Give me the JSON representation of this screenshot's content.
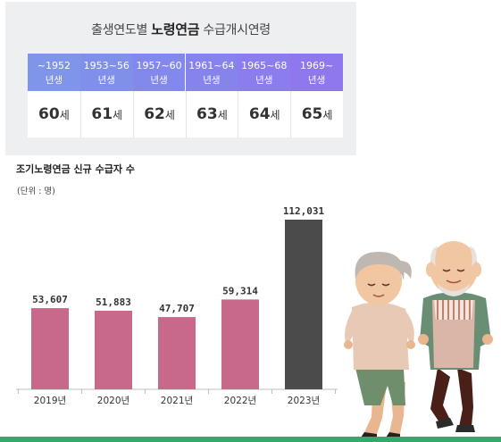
{
  "panel": {
    "title_prefix": "출생연도별 ",
    "title_bold": "노령연금",
    "title_suffix": " 수급개시연령",
    "columns": [
      {
        "range": "~1952",
        "unit": "년생",
        "age": "60",
        "age_suffix": "세",
        "color": "#7f95ea"
      },
      {
        "range": "1953~56",
        "unit": "년생",
        "age": "61",
        "age_suffix": "세",
        "color": "#8090ea"
      },
      {
        "range": "1957~60",
        "unit": "년생",
        "age": "62",
        "age_suffix": "세",
        "color": "#8389ec"
      },
      {
        "range": "1961~64",
        "unit": "년생",
        "age": "63",
        "age_suffix": "세",
        "color": "#8783ed"
      },
      {
        "range": "1965~68",
        "unit": "년생",
        "age": "64",
        "age_suffix": "세",
        "color": "#8b7dee"
      },
      {
        "range": "1969~",
        "unit": "년생",
        "age": "65",
        "age_suffix": "세",
        "color": "#8f77ee"
      }
    ]
  },
  "chart_data": {
    "type": "bar",
    "title": "조기노령연금 신규 수급자 수",
    "unit_note": "(단위 : 명)",
    "categories": [
      "2019년",
      "2020년",
      "2021년",
      "2022년",
      "2023년"
    ],
    "values": [
      53607,
      51883,
      47707,
      59314,
      112031
    ],
    "value_labels": [
      "53,607",
      "51,883",
      "47,707",
      "59,314",
      "112,031"
    ],
    "ylim": [
      0,
      112031
    ],
    "grid": false,
    "colors": [
      "#c8688b",
      "#c8688b",
      "#c8688b",
      "#c8688b",
      "#4b4b4b"
    ],
    "axis_color": "#bdbdbd"
  },
  "footer": {
    "line_color": "#3aa66a"
  }
}
